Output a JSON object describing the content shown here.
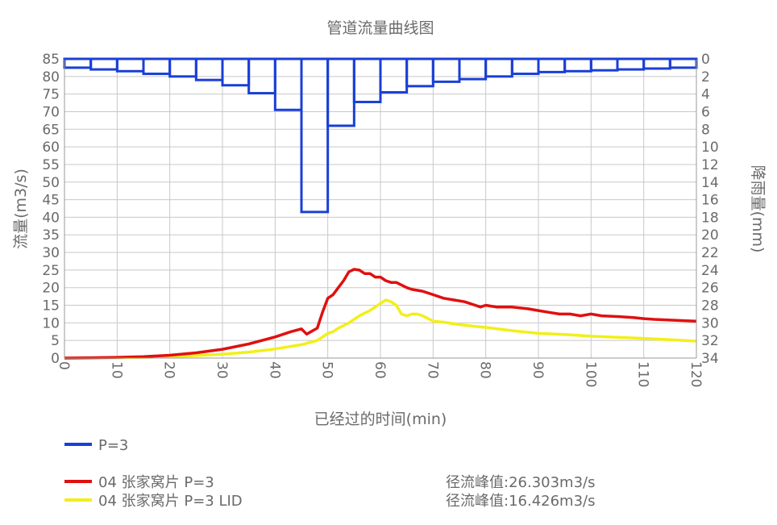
{
  "chart_data": {
    "type": "line",
    "title": "管道流量曲线图",
    "xlabel": "已经过的时间(min)",
    "ylabel_left": "流量(m3/s)",
    "ylabel_right": "降雨量(mm)",
    "xlim": [
      0,
      120
    ],
    "ylim_left": [
      0,
      85
    ],
    "ylim_right": [
      0,
      34
    ],
    "right_axis_inverted": true,
    "grid": true,
    "x_ticks": [
      "0",
      "10",
      "20",
      "30",
      "40",
      "50",
      "60",
      "70",
      "80",
      "90",
      "100",
      "110",
      "120"
    ],
    "y_left_ticks": [
      "0",
      "5",
      "10",
      "15",
      "20",
      "25",
      "30",
      "35",
      "40",
      "45",
      "50",
      "55",
      "60",
      "65",
      "70",
      "75",
      "80",
      "85"
    ],
    "y_right_ticks": [
      "0",
      "2",
      "4",
      "6",
      "8",
      "10",
      "12",
      "14",
      "16",
      "18",
      "20",
      "22",
      "24",
      "26",
      "28",
      "30",
      "32",
      "34"
    ],
    "rain": {
      "name": "P=3",
      "color": "#1a3fd6",
      "bins": [
        0,
        5,
        10,
        15,
        20,
        25,
        30,
        35,
        40,
        45,
        50,
        55,
        60,
        65,
        70,
        75,
        80,
        85,
        90,
        95,
        100,
        105,
        110,
        115,
        120
      ],
      "values": [
        1.0,
        1.2,
        1.4,
        1.7,
        2.0,
        2.4,
        3.0,
        3.9,
        5.8,
        17.4,
        7.6,
        4.9,
        3.8,
        3.1,
        2.6,
        2.3,
        2.0,
        1.7,
        1.5,
        1.4,
        1.3,
        1.2,
        1.1,
        1.0
      ]
    },
    "series": [
      {
        "name": "04 张家窝片 P=3",
        "color": "#e01010",
        "peak_label": "径流峰值:26.303m3/s",
        "x": [
          0,
          5,
          10,
          15,
          20,
          25,
          30,
          35,
          40,
          43,
          45,
          46,
          48,
          49,
          50,
          51,
          52,
          53,
          54,
          55,
          56,
          57,
          58,
          59,
          60,
          61,
          62,
          63,
          65,
          66,
          68,
          70,
          72,
          74,
          76,
          78,
          79,
          80,
          82,
          85,
          88,
          90,
          92,
          94,
          96,
          98,
          100,
          102,
          105,
          108,
          110,
          112,
          115,
          118,
          120
        ],
        "y": [
          0,
          0.1,
          0.2,
          0.4,
          0.8,
          1.5,
          2.5,
          4,
          6,
          7.5,
          8.3,
          6.8,
          8.5,
          13,
          17,
          18,
          20,
          22,
          24.5,
          25.2,
          25,
          24,
          24,
          23,
          23,
          22,
          21.5,
          21.5,
          20,
          19.5,
          19,
          18,
          17,
          16.5,
          16,
          15,
          14.5,
          15,
          14.5,
          14.5,
          14,
          13.5,
          13,
          12.5,
          12.5,
          12,
          12.5,
          12,
          11.8,
          11.5,
          11.2,
          11,
          10.8,
          10.6,
          10.5
        ]
      },
      {
        "name": "04 张家窝片 P=3 LID",
        "color": "#f2ef1a",
        "peak_label": "径流峰值:16.426m3/s",
        "x": [
          0,
          5,
          10,
          15,
          20,
          25,
          30,
          35,
          40,
          45,
          48,
          50,
          51,
          52,
          54,
          56,
          58,
          60,
          61,
          62,
          63,
          64,
          65,
          66,
          67,
          68,
          70,
          72,
          75,
          78,
          80,
          85,
          90,
          95,
          100,
          105,
          110,
          115,
          120
        ],
        "y": [
          0,
          0,
          0.1,
          0.2,
          0.4,
          0.7,
          1.1,
          1.7,
          2.6,
          3.8,
          5,
          7,
          7.5,
          8.5,
          10,
          12,
          13.5,
          15.5,
          16.5,
          16,
          15,
          12.5,
          12,
          12.5,
          12.5,
          12,
          10.5,
          10.2,
          9.5,
          9,
          8.7,
          7.8,
          7,
          6.7,
          6.2,
          5.9,
          5.6,
          5.2,
          4.8
        ]
      }
    ],
    "legend_placement": "bottom-left"
  }
}
